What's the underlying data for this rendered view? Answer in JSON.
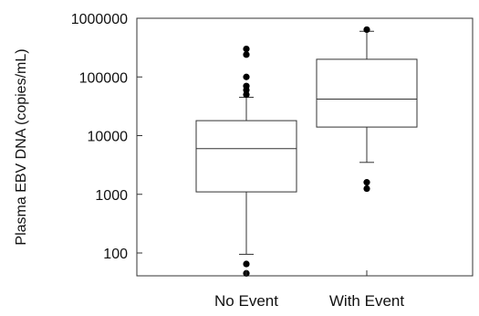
{
  "chart_data": {
    "type": "box",
    "ylabel": "Plasma EBV DNA (copies/mL)",
    "yscale": "log",
    "ylim": [
      40,
      1000000
    ],
    "yticks": [
      {
        "value": 100,
        "label": "100"
      },
      {
        "value": 1000,
        "label": "1000"
      },
      {
        "value": 10000,
        "label": "10000"
      },
      {
        "value": 100000,
        "label": "100000"
      },
      {
        "value": 1000000,
        "label": "1000000"
      }
    ],
    "categories": [
      "No Event",
      "With Event"
    ],
    "boxes": [
      {
        "category": "No Event",
        "whisker_low": 95,
        "q1": 1100,
        "median": 6000,
        "q3": 18000,
        "whisker_high": 45000,
        "outliers": [
          300000,
          240000,
          100000,
          70000,
          60000,
          50000,
          65,
          45
        ]
      },
      {
        "category": "With Event",
        "whisker_low": 3500,
        "q1": 14000,
        "median": 42000,
        "q3": 200000,
        "whisker_high": 600000,
        "outliers": [
          640000,
          1600,
          1250
        ]
      }
    ],
    "grid": false,
    "colors": {
      "stroke": "#333333",
      "point": "#000000"
    }
  }
}
